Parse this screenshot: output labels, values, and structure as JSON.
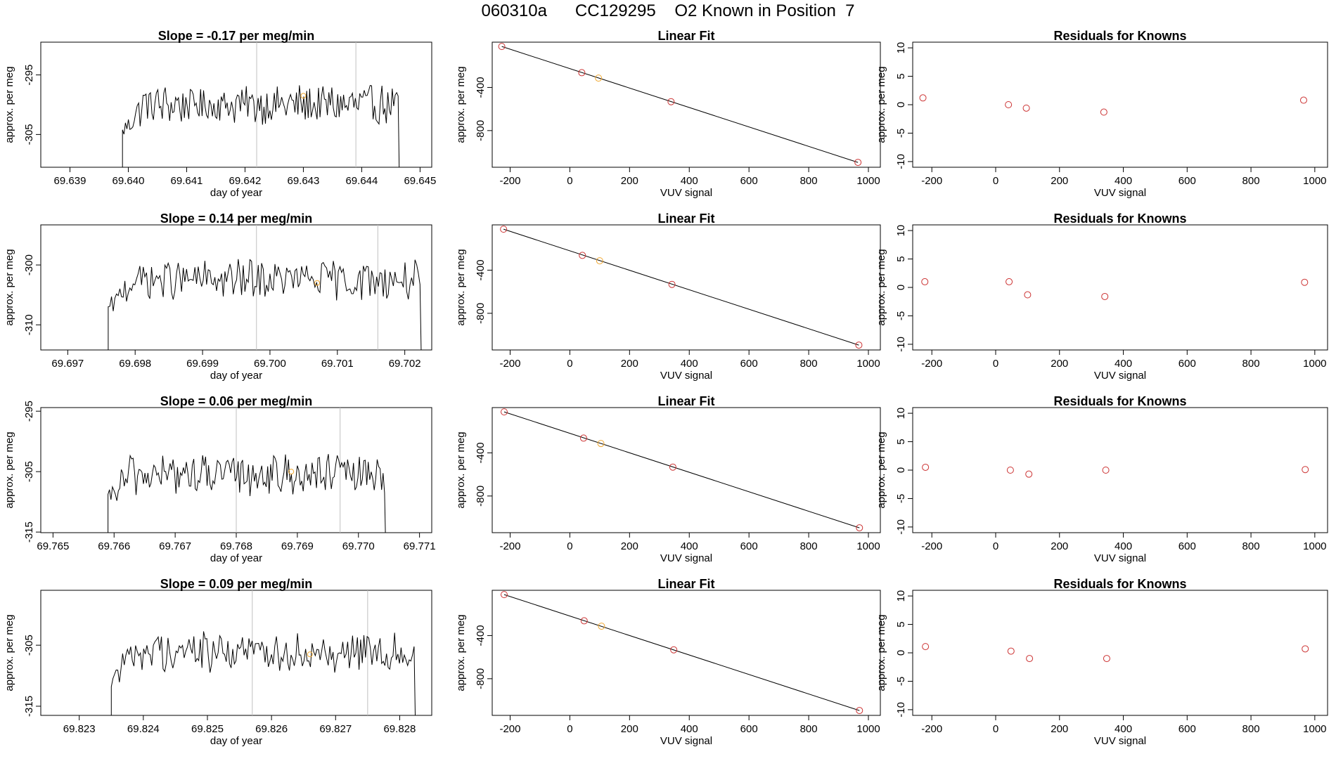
{
  "header": {
    "title": "060310a      CC129295    O2 Known in Position  7"
  },
  "colors": {
    "line": "#000000",
    "point": "#cc3333",
    "highlight": "#f0a830",
    "vline": "#c0c0c0"
  },
  "chart_data": [
    {
      "type": "line",
      "row": 0,
      "col": 0,
      "title": "Slope =  -0.17  per meg/min",
      "xlabel": "day of year",
      "ylabel": "approx. per meg",
      "xlim": [
        69.6385,
        69.6452
      ],
      "ylim": [
        -310.5,
        -289.5
      ],
      "xticks": [
        69.639,
        69.64,
        69.641,
        69.642,
        69.643,
        69.644,
        69.645
      ],
      "xtick_labels": [
        "69.639",
        "69.640",
        "69.641",
        "69.642",
        "69.643",
        "69.644",
        "69.645"
      ],
      "yticks": [
        -305,
        -295
      ],
      "ytick_labels": [
        "-305",
        "-295"
      ],
      "series_range": [
        69.6399,
        69.6447
      ],
      "base_level": -300,
      "noise_amplitude": 3,
      "vlines": [
        69.6422,
        69.6439
      ],
      "marker": {
        "x": 69.643,
        "y": -298.5
      }
    },
    {
      "type": "scatter",
      "row": 0,
      "col": 1,
      "title": "Linear Fit",
      "xlabel": "VUV signal",
      "ylabel": "approx. per meg",
      "xlim": [
        -260,
        1040
      ],
      "ylim": [
        -1140,
        20
      ],
      "xticks": [
        -200,
        0,
        200,
        400,
        600,
        800,
        1000
      ],
      "xtick_labels": [
        "-200",
        "0",
        "200",
        "400",
        "600",
        "800",
        "1000"
      ],
      "yticks": [
        -800,
        -400
      ],
      "ytick_labels": [
        "-800",
        "-400"
      ],
      "fit_line": [
        [
          -228,
          -20
        ],
        [
          965,
          -1095
        ]
      ],
      "points": [
        [
          -228,
          -20
        ],
        [
          40,
          -263
        ],
        [
          96,
          -313
        ],
        [
          339,
          -532
        ],
        [
          965,
          -1095
        ]
      ],
      "highlight_index": 2
    },
    {
      "type": "scatter",
      "row": 0,
      "col": 2,
      "title": "Residuals for Knowns",
      "xlabel": "VUV signal",
      "ylabel": "approx. per meg",
      "xlim": [
        -260,
        1040
      ],
      "ylim": [
        -11,
        11
      ],
      "xticks": [
        -200,
        0,
        200,
        400,
        600,
        800,
        1000
      ],
      "xtick_labels": [
        "-200",
        "0",
        "200",
        "400",
        "600",
        "800",
        "1000"
      ],
      "yticks": [
        -10,
        -5,
        0,
        5,
        10
      ],
      "ytick_labels": [
        "-10",
        "-5",
        "0",
        "5",
        "10"
      ],
      "points": [
        [
          -228,
          1.2
        ],
        [
          40,
          0.0
        ],
        [
          96,
          -0.6
        ],
        [
          339,
          -1.3
        ],
        [
          965,
          0.8
        ]
      ]
    },
    {
      "type": "line",
      "row": 1,
      "col": 0,
      "title": "Slope =  0.14  per meg/min",
      "xlabel": "day of year",
      "ylabel": "approx. per meg",
      "xlim": [
        69.6966,
        69.7024
      ],
      "ylim": [
        -314.2,
        -293.3
      ],
      "xticks": [
        69.697,
        69.698,
        69.699,
        69.7,
        69.701,
        69.702
      ],
      "xtick_labels": [
        "69.697",
        "69.698",
        "69.699",
        "69.700",
        "69.701",
        "69.702"
      ],
      "yticks": [
        -310,
        -300
      ],
      "ytick_labels": [
        "-310",
        "-300"
      ],
      "series_range": [
        69.6976,
        69.7023
      ],
      "base_level": -302.5,
      "noise_amplitude": 3,
      "vlines": [
        69.6998,
        69.7016
      ],
      "marker": {
        "x": 69.7007,
        "y": -303.0
      }
    },
    {
      "type": "scatter",
      "row": 1,
      "col": 1,
      "title": "Linear Fit",
      "xlabel": "VUV signal",
      "ylabel": "approx. per meg",
      "xlim": [
        -260,
        1040
      ],
      "ylim": [
        -1140,
        20
      ],
      "xticks": [
        -200,
        0,
        200,
        400,
        600,
        800,
        1000
      ],
      "xtick_labels": [
        "-200",
        "0",
        "200",
        "400",
        "600",
        "800",
        "1000"
      ],
      "yticks": [
        -800,
        -400
      ],
      "ytick_labels": [
        "-800",
        "-400"
      ],
      "fit_line": [
        [
          -222,
          -20
        ],
        [
          968,
          -1095
        ]
      ],
      "points": [
        [
          -222,
          -20
        ],
        [
          42,
          -263
        ],
        [
          100,
          -313
        ],
        [
          342,
          -532
        ],
        [
          968,
          -1095
        ]
      ],
      "highlight_index": 2
    },
    {
      "type": "scatter",
      "row": 1,
      "col": 2,
      "title": "Residuals for Knowns",
      "xlabel": "VUV signal",
      "ylabel": "approx. per meg",
      "xlim": [
        -260,
        1040
      ],
      "ylim": [
        -11,
        11
      ],
      "xticks": [
        -200,
        0,
        200,
        400,
        600,
        800,
        1000
      ],
      "xtick_labels": [
        "-200",
        "0",
        "200",
        "400",
        "600",
        "800",
        "1000"
      ],
      "yticks": [
        -10,
        -5,
        0,
        5,
        10
      ],
      "ytick_labels": [
        "-10",
        "-5",
        "0",
        "5",
        "10"
      ],
      "points": [
        [
          -222,
          1.0
        ],
        [
          42,
          1.0
        ],
        [
          100,
          -1.3
        ],
        [
          342,
          -1.6
        ],
        [
          968,
          0.9
        ]
      ]
    },
    {
      "type": "line",
      "row": 2,
      "col": 0,
      "title": "Slope =  0.06  per meg/min",
      "xlabel": "day of year",
      "ylabel": "approx. per meg",
      "xlim": [
        69.7648,
        69.7712
      ],
      "ylim": [
        -315.1,
        -294.4
      ],
      "xticks": [
        69.765,
        69.766,
        69.767,
        69.768,
        69.769,
        69.77,
        69.771
      ],
      "xtick_labels": [
        "69.765",
        "69.766",
        "69.767",
        "69.768",
        "69.769",
        "69.770",
        "69.771"
      ],
      "yticks": [
        -315,
        -305,
        -295
      ],
      "ytick_labels": [
        "-315",
        "-305",
        "-295"
      ],
      "series_range": [
        69.7659,
        69.7705
      ],
      "base_level": -305.5,
      "noise_amplitude": 3,
      "vlines": [
        69.768,
        69.7697
      ],
      "marker": {
        "x": 69.7689,
        "y": -305.0
      }
    },
    {
      "type": "scatter",
      "row": 2,
      "col": 1,
      "title": "Linear Fit",
      "xlabel": "VUV signal",
      "ylabel": "approx. per meg",
      "xlim": [
        -260,
        1040
      ],
      "ylim": [
        -1140,
        20
      ],
      "xticks": [
        -200,
        0,
        200,
        400,
        600,
        800,
        1000
      ],
      "xtick_labels": [
        "-200",
        "0",
        "200",
        "400",
        "600",
        "800",
        "1000"
      ],
      "yticks": [
        -800,
        -400
      ],
      "ytick_labels": [
        "-800",
        "-400"
      ],
      "fit_line": [
        [
          -220,
          -20
        ],
        [
          970,
          -1095
        ]
      ],
      "points": [
        [
          -220,
          -20
        ],
        [
          46,
          -263
        ],
        [
          104,
          -313
        ],
        [
          345,
          -532
        ],
        [
          970,
          -1095
        ]
      ],
      "highlight_index": 2
    },
    {
      "type": "scatter",
      "row": 2,
      "col": 2,
      "title": "Residuals for Knowns",
      "xlabel": "VUV signal",
      "ylabel": "approx. per meg",
      "xlim": [
        -260,
        1040
      ],
      "ylim": [
        -11,
        11
      ],
      "xticks": [
        -200,
        0,
        200,
        400,
        600,
        800,
        1000
      ],
      "xtick_labels": [
        "-200",
        "0",
        "200",
        "400",
        "600",
        "800",
        "1000"
      ],
      "yticks": [
        -10,
        -5,
        0,
        5,
        10
      ],
      "ytick_labels": [
        "-10",
        "-5",
        "0",
        "5",
        "10"
      ],
      "points": [
        [
          -220,
          0.5
        ],
        [
          46,
          0.0
        ],
        [
          104,
          -0.7
        ],
        [
          345,
          0.0
        ],
        [
          970,
          0.1
        ]
      ]
    },
    {
      "type": "line",
      "row": 3,
      "col": 0,
      "title": "Slope =  0.09  per meg/min",
      "xlabel": "day of year",
      "ylabel": "approx. per meg",
      "xlim": [
        69.8224,
        69.8285
      ],
      "ylim": [
        -316.5,
        -296.0
      ],
      "xticks": [
        69.823,
        69.824,
        69.825,
        69.826,
        69.827,
        69.828
      ],
      "xtick_labels": [
        "69.823",
        "69.824",
        "69.825",
        "69.826",
        "69.827",
        "69.828"
      ],
      "yticks": [
        -315,
        -305
      ],
      "ytick_labels": [
        "-315",
        "-305"
      ],
      "series_range": [
        69.8235,
        69.8283
      ],
      "base_level": -306,
      "noise_amplitude": 3,
      "vlines": [
        69.8257,
        69.8275
      ],
      "marker": {
        "x": 69.8266,
        "y": -306.5
      }
    },
    {
      "type": "scatter",
      "row": 3,
      "col": 1,
      "title": "Linear Fit",
      "xlabel": "VUV signal",
      "ylabel": "approx. per meg",
      "xlim": [
        -260,
        1040
      ],
      "ylim": [
        -1140,
        20
      ],
      "xticks": [
        -200,
        0,
        200,
        400,
        600,
        800,
        1000
      ],
      "xtick_labels": [
        "-200",
        "0",
        "200",
        "400",
        "600",
        "800",
        "1000"
      ],
      "yticks": [
        -800,
        -400
      ],
      "ytick_labels": [
        "-800",
        "-400"
      ],
      "fit_line": [
        [
          -220,
          -20
        ],
        [
          970,
          -1095
        ]
      ],
      "points": [
        [
          -220,
          -20
        ],
        [
          48,
          -263
        ],
        [
          106,
          -313
        ],
        [
          348,
          -532
        ],
        [
          970,
          -1095
        ]
      ],
      "highlight_index": 2
    },
    {
      "type": "scatter",
      "row": 3,
      "col": 2,
      "title": "Residuals for Knowns",
      "xlabel": "VUV signal",
      "ylabel": "approx. per meg",
      "xlim": [
        -260,
        1040
      ],
      "ylim": [
        -11,
        11
      ],
      "xticks": [
        -200,
        0,
        200,
        400,
        600,
        800,
        1000
      ],
      "xtick_labels": [
        "-200",
        "0",
        "200",
        "400",
        "600",
        "800",
        "1000"
      ],
      "yticks": [
        -10,
        -5,
        0,
        5,
        10
      ],
      "ytick_labels": [
        "-10",
        "-5",
        "0",
        "5",
        "10"
      ],
      "points": [
        [
          -220,
          1.1
        ],
        [
          48,
          0.3
        ],
        [
          106,
          -1.0
        ],
        [
          348,
          -1.0
        ],
        [
          970,
          0.7
        ]
      ]
    }
  ]
}
